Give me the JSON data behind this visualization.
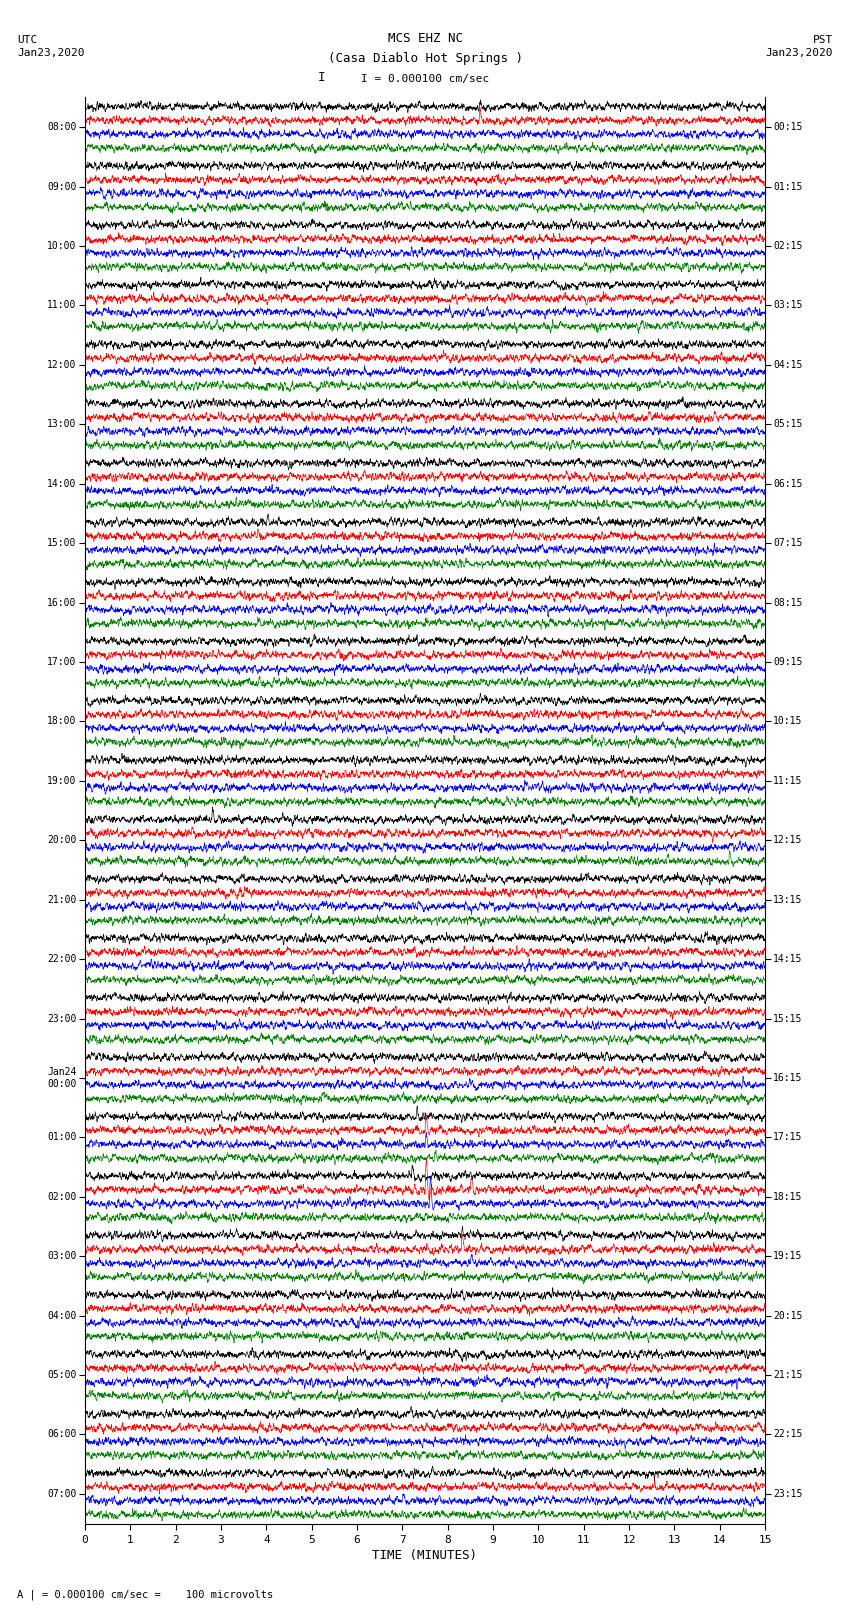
{
  "title_line1": "MCS EHZ NC",
  "title_line2": "(Casa Diablo Hot Springs )",
  "scale_label": "I = 0.000100 cm/sec",
  "bottom_label": "A | = 0.000100 cm/sec =    100 microvolts",
  "xlabel": "TIME (MINUTES)",
  "utc_label": "UTC\nJan23,2020",
  "pst_label": "PST\nJan23,2020",
  "left_times": [
    "08:00",
    "09:00",
    "10:00",
    "11:00",
    "12:00",
    "13:00",
    "14:00",
    "15:00",
    "16:00",
    "17:00",
    "18:00",
    "19:00",
    "20:00",
    "21:00",
    "22:00",
    "23:00",
    "Jan24\n00:00",
    "01:00",
    "02:00",
    "03:00",
    "04:00",
    "05:00",
    "06:00",
    "07:00"
  ],
  "right_times": [
    "00:15",
    "01:15",
    "02:15",
    "03:15",
    "04:15",
    "05:15",
    "06:15",
    "07:15",
    "08:15",
    "09:15",
    "10:15",
    "11:15",
    "12:15",
    "13:15",
    "14:15",
    "15:15",
    "16:15",
    "17:15",
    "18:15",
    "19:15",
    "20:15",
    "21:15",
    "22:15",
    "23:15"
  ],
  "n_rows": 24,
  "n_traces_per_row": 4,
  "trace_colors": [
    "black",
    "red",
    "blue",
    "green"
  ],
  "bg_color": "white",
  "x_min": 0,
  "x_max": 15,
  "x_ticks": [
    0,
    1,
    2,
    3,
    4,
    5,
    6,
    7,
    8,
    9,
    10,
    11,
    12,
    13,
    14,
    15
  ]
}
